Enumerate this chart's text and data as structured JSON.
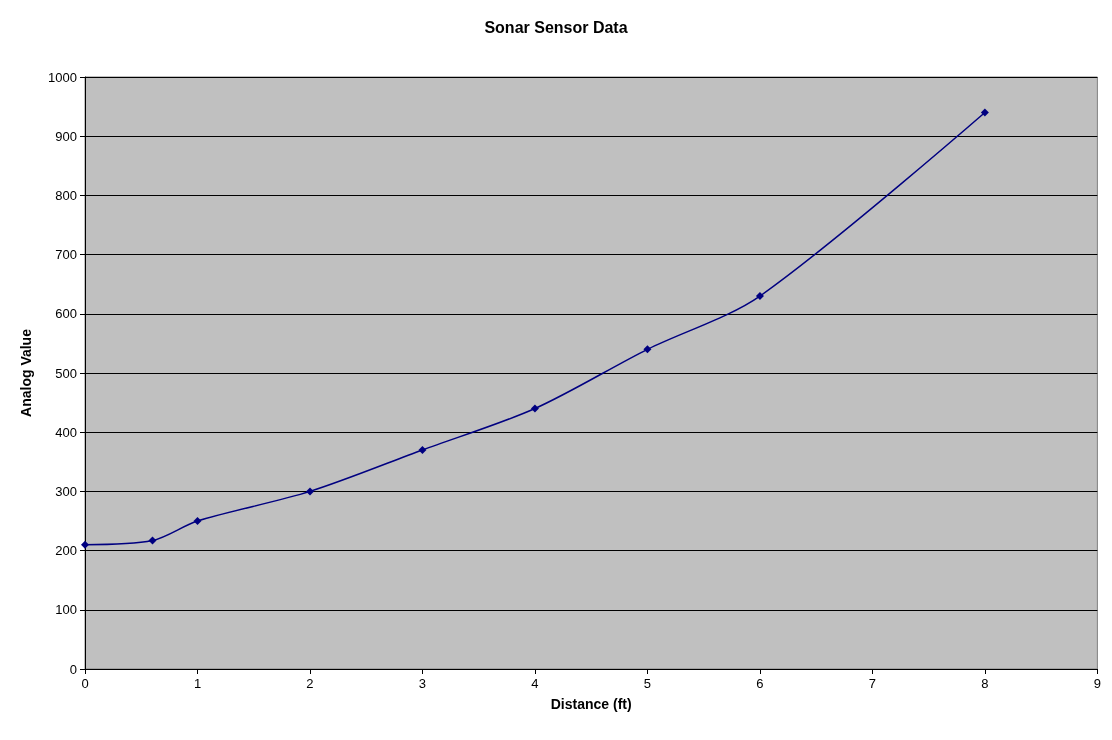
{
  "chart_data": {
    "type": "line",
    "title": "Sonar Sensor Data",
    "xlabel": "Distance (ft)",
    "ylabel": "Analog Value",
    "x": [
      0,
      0.6,
      1,
      2,
      3,
      4,
      5,
      6,
      8
    ],
    "series": [
      {
        "color": "#000080",
        "values": [
          210,
          217,
          250,
          300,
          370,
          440,
          540,
          630,
          940
        ]
      }
    ],
    "xlim": [
      0,
      9
    ],
    "xticks": [
      0,
      1,
      2,
      3,
      4,
      5,
      6,
      7,
      8,
      9
    ],
    "ylim": [
      0,
      1000
    ],
    "yticks": [
      0,
      100,
      200,
      300,
      400,
      500,
      600,
      700,
      800,
      900,
      1000
    ],
    "grid": "y",
    "marker": "diamond",
    "line_style": "solid"
  }
}
